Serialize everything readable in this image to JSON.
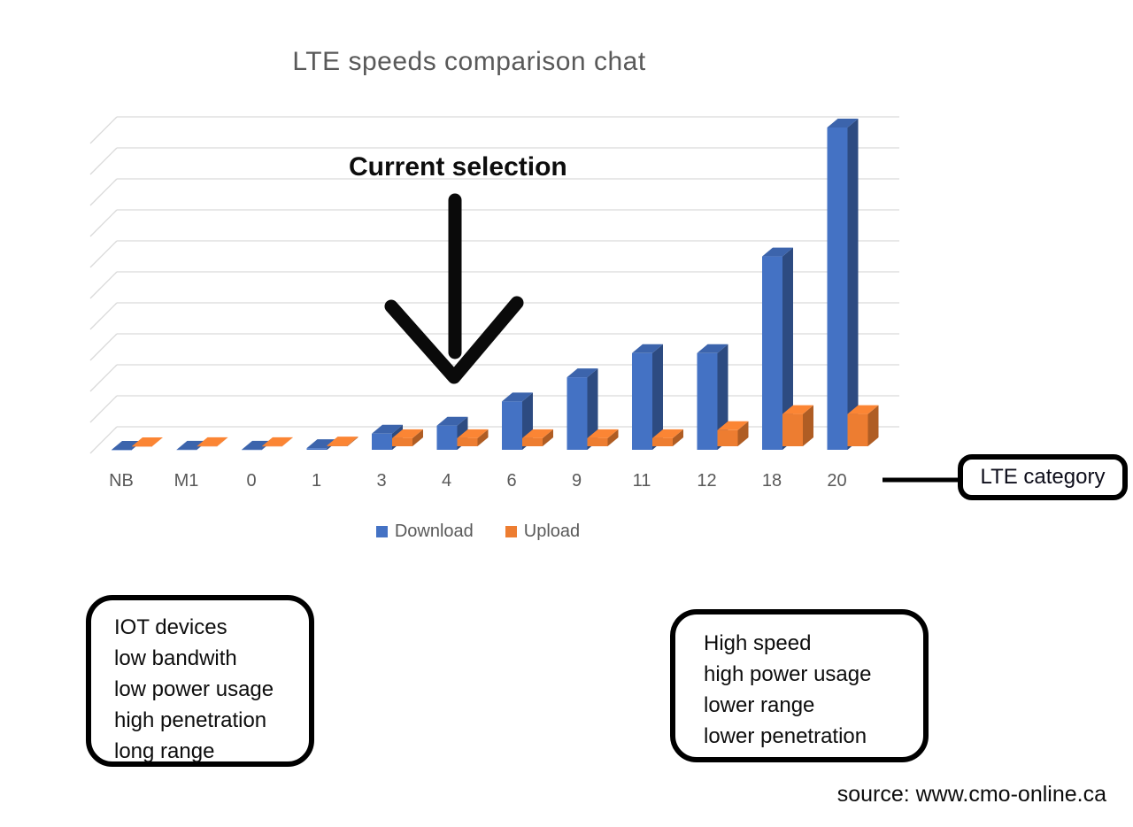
{
  "title": "LTE speeds comparison chat",
  "annotation": {
    "label": "Current selection",
    "target_category": "4"
  },
  "callout": {
    "label": "LTE category"
  },
  "legend": [
    {
      "label": "Download",
      "color": "#4472C4"
    },
    {
      "label": "Upload",
      "color": "#ED7D31"
    }
  ],
  "boxes": {
    "left": {
      "lines": [
        "IOT devices",
        "low bandwith",
        "low power usage",
        "high penetration",
        "long range"
      ]
    },
    "right": {
      "lines": [
        "High speed",
        "high power usage",
        "lower range",
        "lower penetration"
      ]
    }
  },
  "source": "source: www.cmo-online.ca",
  "chart_data": {
    "type": "bar",
    "style": "3d-column",
    "title": "LTE speeds comparison chat",
    "categories": [
      "NB",
      "M1",
      "0",
      "1",
      "3",
      "4",
      "6",
      "9",
      "11",
      "12",
      "18",
      "20"
    ],
    "xlabel": "LTE category",
    "ylabel": "",
    "y_axis_labels_shown": false,
    "note": "No y-axis tick labels are shown; values estimated from bar heights relative to gridlines (Mbps-like units)",
    "series": [
      {
        "name": "Download",
        "color": "#4472C4",
        "values": [
          0.03,
          1,
          1,
          10,
          100,
          150,
          300,
          450,
          600,
          600,
          1200,
          2000
        ]
      },
      {
        "name": "Upload",
        "color": "#ED7D31",
        "values": [
          0.07,
          1,
          1,
          5,
          50,
          50,
          50,
          50,
          50,
          100,
          200,
          200
        ]
      }
    ],
    "ylim": [
      0,
      2060
    ],
    "gridlines": 11,
    "grid": true,
    "legend_position": "bottom"
  }
}
